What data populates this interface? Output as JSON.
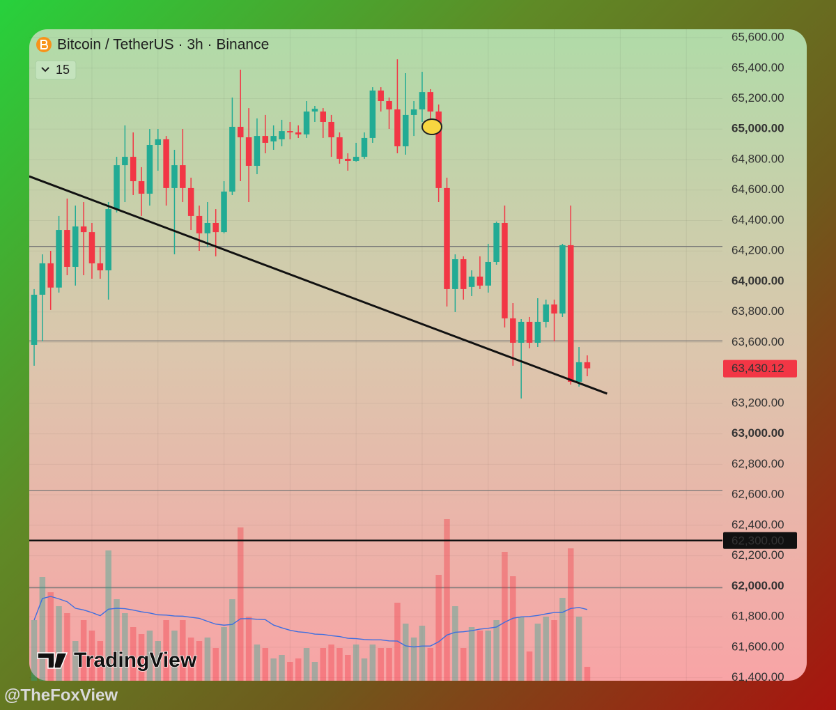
{
  "chart_data": {
    "type": "candlestick",
    "title": "Bitcoin / TetherUS · 3h · Binance",
    "indicator_count": 15,
    "watermark": "TradingView",
    "up_color": "#22ab94",
    "down_color": "#f23645",
    "ylim": [
      61380,
      65655
    ],
    "yticks": [
      {
        "value": 65600,
        "label": "65,600.00"
      },
      {
        "value": 65400,
        "label": "65,400.00"
      },
      {
        "value": 65200,
        "label": "65,200.00"
      },
      {
        "value": 65000,
        "label": "65,000.00"
      },
      {
        "value": 64800,
        "label": "64,800.00"
      },
      {
        "value": 64600,
        "label": "64,600.00"
      },
      {
        "value": 64400,
        "label": "64,400.00"
      },
      {
        "value": 64200,
        "label": "64,200.00"
      },
      {
        "value": 64000,
        "label": "64,000.00"
      },
      {
        "value": 63800,
        "label": "63,800.00"
      },
      {
        "value": 63600,
        "label": "63,600.00"
      },
      {
        "value": 63200,
        "label": "63,200.00"
      },
      {
        "value": 63000,
        "label": "63,000.00"
      },
      {
        "value": 62800,
        "label": "62,800.00"
      },
      {
        "value": 62600,
        "label": "62,600.00"
      },
      {
        "value": 62400,
        "label": "62,400.00"
      },
      {
        "value": 62200,
        "label": "62,200.00"
      },
      {
        "value": 62000,
        "label": "62,000.00"
      },
      {
        "value": 61800,
        "label": "61,800.00"
      },
      {
        "value": 61600,
        "label": "61,600.00"
      },
      {
        "value": 61400,
        "label": "61,400.00"
      }
    ],
    "open": [
      63584,
      63913,
      64119,
      63960,
      64338,
      64096,
      64361,
      64324,
      64119,
      64073,
      64475,
      64763,
      64818,
      64658,
      64576,
      64896,
      64933,
      64613,
      64763,
      64613,
      64430,
      64316,
      64384,
      64324,
      64590,
      65015,
      64946,
      64759,
      64955,
      64919,
      64933,
      64987,
      64978,
      64965,
      65115,
      65115,
      65047,
      64946,
      64805,
      64791,
      64818,
      64942,
      65253,
      65184,
      65129,
      64887,
      65093,
      65129,
      65243,
      65115,
      64613,
      63950,
      64146,
      63964,
      64032,
      63973,
      64128,
      64384,
      63758,
      63598,
      63735,
      63598,
      63735,
      63849,
      63790,
      64238,
      63342,
      63470
    ],
    "high": [
      63950,
      64178,
      64201,
      64430,
      64544,
      64498,
      64521,
      64384,
      64224,
      64521,
      64818,
      65024,
      64978,
      64750,
      65001,
      65001,
      64955,
      64864,
      65001,
      64681,
      64498,
      64521,
      64475,
      64658,
      65207,
      65390,
      65138,
      65070,
      65093,
      65024,
      65061,
      65047,
      65024,
      65184,
      65152,
      65138,
      65093,
      64978,
      64841,
      64910,
      64978,
      65275,
      65275,
      65207,
      65458,
      65367,
      65184,
      65376,
      65262,
      65161,
      64681,
      64178,
      64165,
      64073,
      64165,
      64247,
      64393,
      64498,
      63858,
      63753,
      63767,
      63890,
      63881,
      63881,
      64247,
      64498,
      63570,
      63515
    ],
    "low": [
      63447,
      63607,
      63813,
      63927,
      64041,
      63973,
      64041,
      64018,
      64018,
      63881,
      64453,
      64521,
      64567,
      64430,
      64498,
      64727,
      64498,
      64178,
      64521,
      64338,
      64201,
      64224,
      64165,
      64316,
      64567,
      64658,
      64521,
      64704,
      64841,
      64864,
      64887,
      64933,
      64942,
      64942,
      65047,
      64942,
      64818,
      64773,
      64727,
      64786,
      64805,
      64910,
      65115,
      65001,
      64841,
      64832,
      64955,
      65047,
      65024,
      64521,
      63836,
      63799,
      63881,
      63904,
      63950,
      63927,
      64110,
      63698,
      63447,
      63232,
      63561,
      63570,
      63698,
      63607,
      63767,
      63324,
      63310,
      63378
    ],
    "close": [
      63913,
      64119,
      63960,
      64338,
      64096,
      64361,
      64324,
      64119,
      64073,
      64475,
      64763,
      64818,
      64658,
      64576,
      64896,
      64933,
      64613,
      64763,
      64613,
      64430,
      64316,
      64384,
      64324,
      64590,
      65015,
      64946,
      64759,
      64955,
      64910,
      64955,
      64987,
      64978,
      64965,
      65115,
      65133,
      65047,
      64946,
      64805,
      64791,
      64818,
      64942,
      65253,
      65184,
      65129,
      64887,
      65093,
      65129,
      65243,
      65115,
      64613,
      63950,
      64146,
      63950,
      64032,
      63973,
      64128,
      64384,
      63758,
      63598,
      63735,
      63598,
      63735,
      63849,
      63790,
      64238,
      63342,
      63470,
      63430.12
    ],
    "volume": [
      87,
      149,
      127,
      107,
      97,
      57,
      87,
      72,
      57,
      187,
      117,
      97,
      77,
      67,
      72,
      57,
      87,
      72,
      87,
      62,
      57,
      62,
      47,
      77,
      117,
      220,
      92,
      52,
      47,
      32,
      37,
      27,
      32,
      47,
      27,
      47,
      52,
      47,
      37,
      52,
      32,
      52,
      47,
      47,
      112,
      82,
      62,
      79,
      47,
      152,
      232,
      107,
      47,
      77,
      72,
      72,
      87,
      185,
      150,
      92,
      42,
      82,
      92,
      87,
      119,
      190,
      92,
      20
    ],
    "trendline": {
      "x": [
        -0.6,
        69.4
      ],
      "y": [
        64690,
        63264
      ]
    },
    "hlines": [
      64230,
      63610,
      62630,
      61990
    ],
    "marked_level": {
      "value": 62300,
      "label": "62,300.00"
    },
    "last_price": {
      "value": 63430.12,
      "label": "63,430.12"
    }
  },
  "credit": "@TheFoxView"
}
